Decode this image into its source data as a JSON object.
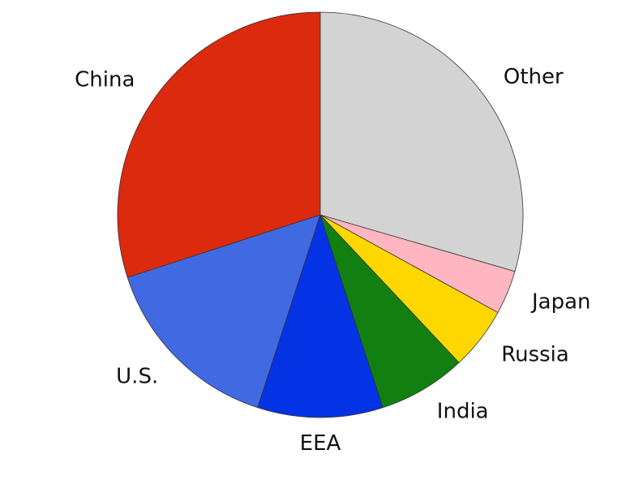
{
  "chart_data": {
    "type": "pie",
    "start_angle_deg": 90,
    "direction": "counterclockwise",
    "slices": [
      {
        "label": "China",
        "value": 30.0,
        "color": "#dc2a0e"
      },
      {
        "label": "U.S.",
        "value": 15.0,
        "color": "#4169e1"
      },
      {
        "label": "EEA",
        "value": 10.0,
        "color": "#0433e6"
      },
      {
        "label": "India",
        "value": 7.0,
        "color": "#118011"
      },
      {
        "label": "Russia",
        "value": 5.0,
        "color": "#ffd700"
      },
      {
        "label": "Japan",
        "value": 3.5,
        "color": "#ffb6c1"
      },
      {
        "label": "Other",
        "value": 29.5,
        "color": "#d3d3d3"
      }
    ]
  }
}
